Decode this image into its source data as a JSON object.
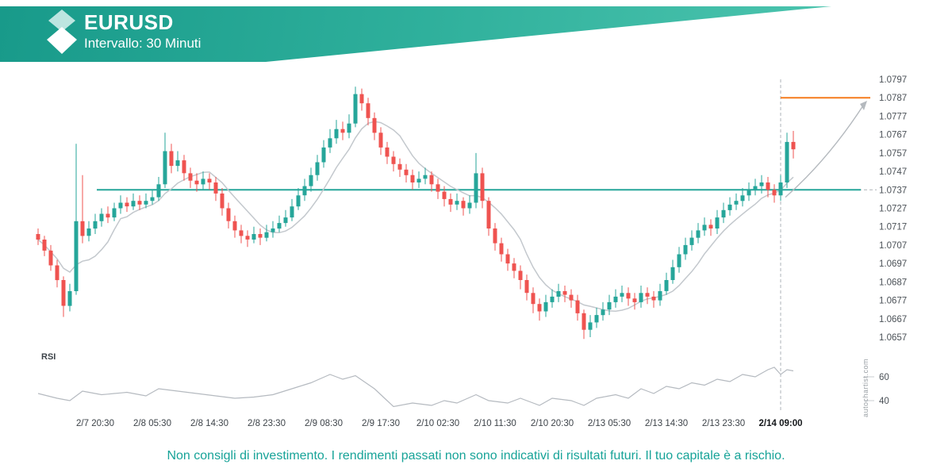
{
  "header": {
    "symbol": "EURUSD",
    "interval_label": "Intervallo: 30 Minuti"
  },
  "watermark": "autochartist.com",
  "footer": {
    "disclaimer": "Non consigli di investimento. I rendimenti passati non sono indicativi di risultati futuri. Il tuo capitale è a rischio."
  },
  "colors": {
    "banner_start": "#189a8a",
    "banner_end": "#54cab3",
    "bull": "#26a69a",
    "bear": "#ef5350",
    "support_line": "#26a69a",
    "target_line": "#f57b1d",
    "ma_line": "#c3c8cd",
    "rsi_line": "#b5bac0",
    "forecast_line": "#b4b9be",
    "dashed": "#adb3b8",
    "axis_text": "#4b5157",
    "footer_text": "#17a398"
  },
  "chart_data": {
    "type": "candlestick",
    "title": "EURUSD — Intervallo: 30 Minuti",
    "symbol": "EURUSD",
    "interval": "30 Minuti",
    "y_axis": {
      "max": 1.0797,
      "min": 1.0657,
      "step": 0.001,
      "labels": [
        "1.0797",
        "1.0787",
        "1.0777",
        "1.0767",
        "1.0757",
        "1.0747",
        "1.0737",
        "1.0727",
        "1.0717",
        "1.0707",
        "1.0697",
        "1.0687",
        "1.0677",
        "1.0667",
        "1.0657"
      ]
    },
    "x_axis": {
      "labels": [
        {
          "text": "2/7 20:30",
          "i": 9
        },
        {
          "text": "2/8 05:30",
          "i": 18
        },
        {
          "text": "2/8 14:30",
          "i": 27
        },
        {
          "text": "2/8 23:30",
          "i": 36
        },
        {
          "text": "2/9 08:30",
          "i": 45
        },
        {
          "text": "2/9 17:30",
          "i": 54
        },
        {
          "text": "2/10 02:30",
          "i": 63
        },
        {
          "text": "2/10 11:30",
          "i": 72
        },
        {
          "text": "2/10 20:30",
          "i": 81
        },
        {
          "text": "2/13 05:30",
          "i": 90
        },
        {
          "text": "2/13 14:30",
          "i": 99
        },
        {
          "text": "2/13 23:30",
          "i": 108
        },
        {
          "text": "2/14 09:00",
          "i": 117,
          "bold": true
        }
      ]
    },
    "levels": {
      "support": 1.0737,
      "target": 1.0787
    },
    "forecast": {
      "event_index": 117,
      "start_price": 1.0733,
      "target_price": 1.0787
    },
    "candles": [
      [
        1.0713,
        1.0716,
        1.0707,
        1.071
      ],
      [
        1.071,
        1.0712,
        1.0701,
        1.0704
      ],
      [
        1.0704,
        1.0707,
        1.0693,
        1.0696
      ],
      [
        1.0696,
        1.0699,
        1.0684,
        1.0688
      ],
      [
        1.0688,
        1.069,
        1.0668,
        1.0674
      ],
      [
        1.0674,
        1.0686,
        1.0671,
        1.0682
      ],
      [
        1.0682,
        1.0762,
        1.068,
        1.072
      ],
      [
        1.072,
        1.0745,
        1.0708,
        1.0712
      ],
      [
        1.0712,
        1.072,
        1.0709,
        1.0716
      ],
      [
        1.0716,
        1.0724,
        1.0713,
        1.072
      ],
      [
        1.072,
        1.0727,
        1.0717,
        1.0724
      ],
      [
        1.0724,
        1.0728,
        1.0719,
        1.0722
      ],
      [
        1.0722,
        1.073,
        1.072,
        1.0727
      ],
      [
        1.0727,
        1.0734,
        1.0724,
        1.073
      ],
      [
        1.073,
        1.0733,
        1.0725,
        1.0728
      ],
      [
        1.0728,
        1.0735,
        1.0726,
        1.0731
      ],
      [
        1.0731,
        1.0734,
        1.0726,
        1.0729
      ],
      [
        1.0729,
        1.0735,
        1.0727,
        1.0731
      ],
      [
        1.0731,
        1.0737,
        1.0729,
        1.0733
      ],
      [
        1.0733,
        1.0744,
        1.0731,
        1.074
      ],
      [
        1.074,
        1.0768,
        1.0738,
        1.0758
      ],
      [
        1.0758,
        1.0762,
        1.0746,
        1.075
      ],
      [
        1.075,
        1.0758,
        1.0747,
        1.0753
      ],
      [
        1.0753,
        1.0756,
        1.0742,
        1.0746
      ],
      [
        1.0746,
        1.0749,
        1.0738,
        1.0742
      ],
      [
        1.0742,
        1.0746,
        1.0736,
        1.074
      ],
      [
        1.074,
        1.0747,
        1.0737,
        1.0743
      ],
      [
        1.0743,
        1.0746,
        1.0737,
        1.0741
      ],
      [
        1.0741,
        1.0744,
        1.0731,
        1.0735
      ],
      [
        1.0735,
        1.0738,
        1.0723,
        1.0727
      ],
      [
        1.0727,
        1.073,
        1.0716,
        1.072
      ],
      [
        1.072,
        1.0723,
        1.0711,
        1.0715
      ],
      [
        1.0715,
        1.0718,
        1.0708,
        1.0712
      ],
      [
        1.0712,
        1.0715,
        1.0706,
        1.071
      ],
      [
        1.071,
        1.0717,
        1.0708,
        1.0713
      ],
      [
        1.0713,
        1.0716,
        1.0707,
        1.0711
      ],
      [
        1.0711,
        1.0718,
        1.0709,
        1.0714
      ],
      [
        1.0714,
        1.072,
        1.0711,
        1.0716
      ],
      [
        1.0716,
        1.0723,
        1.0714,
        1.0719
      ],
      [
        1.0719,
        1.0726,
        1.0717,
        1.0722
      ],
      [
        1.0722,
        1.0732,
        1.072,
        1.0728
      ],
      [
        1.0728,
        1.0738,
        1.0726,
        1.0734
      ],
      [
        1.0734,
        1.0743,
        1.0731,
        1.0739
      ],
      [
        1.0739,
        1.0749,
        1.0736,
        1.0745
      ],
      [
        1.0745,
        1.0756,
        1.0742,
        1.0752
      ],
      [
        1.0752,
        1.0764,
        1.0749,
        1.076
      ],
      [
        1.076,
        1.077,
        1.0757,
        1.0765
      ],
      [
        1.0765,
        1.0775,
        1.0762,
        1.077
      ],
      [
        1.077,
        1.0774,
        1.0764,
        1.0768
      ],
      [
        1.0768,
        1.0778,
        1.0765,
        1.0773
      ],
      [
        1.0773,
        1.0793,
        1.0771,
        1.0789
      ],
      [
        1.0789,
        1.0792,
        1.078,
        1.0784
      ],
      [
        1.0784,
        1.0787,
        1.0772,
        1.0776
      ],
      [
        1.0776,
        1.0779,
        1.0764,
        1.0768
      ],
      [
        1.0768,
        1.0771,
        1.0756,
        1.076
      ],
      [
        1.076,
        1.0763,
        1.0751,
        1.0755
      ],
      [
        1.0755,
        1.0758,
        1.0747,
        1.0751
      ],
      [
        1.0751,
        1.0754,
        1.0744,
        1.0748
      ],
      [
        1.0748,
        1.0751,
        1.0741,
        1.0745
      ],
      [
        1.0745,
        1.0748,
        1.0737,
        1.0741
      ],
      [
        1.0741,
        1.0747,
        1.0738,
        1.0743
      ],
      [
        1.0743,
        1.0749,
        1.074,
        1.0745
      ],
      [
        1.0745,
        1.0747,
        1.0736,
        1.074
      ],
      [
        1.074,
        1.0743,
        1.0732,
        1.0736
      ],
      [
        1.0736,
        1.0739,
        1.0728,
        1.0732
      ],
      [
        1.0732,
        1.0735,
        1.0725,
        1.0729
      ],
      [
        1.0729,
        1.0735,
        1.0726,
        1.0731
      ],
      [
        1.0731,
        1.0733,
        1.0723,
        1.0727
      ],
      [
        1.0727,
        1.0734,
        1.0724,
        1.073
      ],
      [
        1.073,
        1.0757,
        1.0727,
        1.0746
      ],
      [
        1.0746,
        1.0749,
        1.0727,
        1.0731
      ],
      [
        1.0731,
        1.0733,
        1.0712,
        1.0716
      ],
      [
        1.0716,
        1.0719,
        1.0704,
        1.0708
      ],
      [
        1.0708,
        1.0711,
        1.0698,
        1.0702
      ],
      [
        1.0702,
        1.0705,
        1.0693,
        1.0697
      ],
      [
        1.0697,
        1.07,
        1.0689,
        1.0693
      ],
      [
        1.0693,
        1.0696,
        1.0683,
        1.0688
      ],
      [
        1.0688,
        1.0691,
        1.0677,
        1.0681
      ],
      [
        1.0681,
        1.0684,
        1.067,
        1.0675
      ],
      [
        1.0675,
        1.0678,
        1.0666,
        1.0671
      ],
      [
        1.0671,
        1.068,
        1.0668,
        1.0676
      ],
      [
        1.0676,
        1.0683,
        1.0673,
        1.0679
      ],
      [
        1.0679,
        1.0686,
        1.0676,
        1.0682
      ],
      [
        1.0682,
        1.0685,
        1.0676,
        1.068
      ],
      [
        1.068,
        1.0683,
        1.0673,
        1.0677
      ],
      [
        1.0677,
        1.068,
        1.0666,
        1.067
      ],
      [
        1.067,
        1.0672,
        1.0656,
        1.0661
      ],
      [
        1.0661,
        1.0669,
        1.0657,
        1.0665
      ],
      [
        1.0665,
        1.0673,
        1.0662,
        1.0669
      ],
      [
        1.0669,
        1.0676,
        1.0666,
        1.0672
      ],
      [
        1.0672,
        1.068,
        1.0669,
        1.0676
      ],
      [
        1.0676,
        1.0683,
        1.0673,
        1.0679
      ],
      [
        1.0679,
        1.0685,
        1.0676,
        1.0681
      ],
      [
        1.0681,
        1.0684,
        1.0674,
        1.0678
      ],
      [
        1.0678,
        1.0681,
        1.0672,
        1.0676
      ],
      [
        1.0676,
        1.0685,
        1.0673,
        1.0681
      ],
      [
        1.0681,
        1.0684,
        1.0675,
        1.0679
      ],
      [
        1.0679,
        1.0682,
        1.0673,
        1.0677
      ],
      [
        1.0677,
        1.0686,
        1.0674,
        1.0682
      ],
      [
        1.0682,
        1.0692,
        1.068,
        1.0688
      ],
      [
        1.0688,
        1.0699,
        1.0686,
        1.0695
      ],
      [
        1.0695,
        1.0706,
        1.0692,
        1.0702
      ],
      [
        1.0702,
        1.0711,
        1.0699,
        1.0707
      ],
      [
        1.0707,
        1.0715,
        1.0704,
        1.0711
      ],
      [
        1.0711,
        1.0719,
        1.0708,
        1.0715
      ],
      [
        1.0715,
        1.0722,
        1.0712,
        1.0718
      ],
      [
        1.0718,
        1.0721,
        1.0712,
        1.0716
      ],
      [
        1.0716,
        1.0726,
        1.0713,
        1.0722
      ],
      [
        1.0722,
        1.073,
        1.0719,
        1.0726
      ],
      [
        1.0726,
        1.0733,
        1.0723,
        1.0729
      ],
      [
        1.0729,
        1.0735,
        1.0726,
        1.0731
      ],
      [
        1.0731,
        1.0738,
        1.0728,
        1.0734
      ],
      [
        1.0734,
        1.0741,
        1.0731,
        1.0737
      ],
      [
        1.0737,
        1.0743,
        1.0734,
        1.0739
      ],
      [
        1.0739,
        1.0745,
        1.0735,
        1.0741
      ],
      [
        1.0741,
        1.0744,
        1.0733,
        1.0737
      ],
      [
        1.0737,
        1.074,
        1.073,
        1.0734
      ],
      [
        1.0734,
        1.0745,
        1.0731,
        1.0741
      ],
      [
        1.0741,
        1.0768,
        1.0738,
        1.0763
      ],
      [
        1.0763,
        1.0769,
        1.0754,
        1.0759
      ]
    ],
    "rsi": {
      "label": "RSI",
      "ticks": [
        60,
        40
      ],
      "points": [
        [
          0,
          46
        ],
        [
          3,
          42
        ],
        [
          5,
          40
        ],
        [
          7,
          48
        ],
        [
          10,
          45
        ],
        [
          14,
          47
        ],
        [
          17,
          44
        ],
        [
          19,
          50
        ],
        [
          22,
          48
        ],
        [
          25,
          46
        ],
        [
          28,
          44
        ],
        [
          31,
          42
        ],
        [
          34,
          43
        ],
        [
          37,
          45
        ],
        [
          40,
          50
        ],
        [
          43,
          55
        ],
        [
          46,
          62
        ],
        [
          48,
          58
        ],
        [
          50,
          61
        ],
        [
          53,
          50
        ],
        [
          56,
          35
        ],
        [
          59,
          38
        ],
        [
          62,
          36
        ],
        [
          64,
          40
        ],
        [
          66,
          38
        ],
        [
          69,
          45
        ],
        [
          71,
          40
        ],
        [
          74,
          38
        ],
        [
          76,
          42
        ],
        [
          79,
          36
        ],
        [
          81,
          42
        ],
        [
          84,
          40
        ],
        [
          86,
          36
        ],
        [
          88,
          42
        ],
        [
          91,
          45
        ],
        [
          93,
          42
        ],
        [
          95,
          50
        ],
        [
          97,
          46
        ],
        [
          99,
          52
        ],
        [
          101,
          50
        ],
        [
          103,
          55
        ],
        [
          105,
          53
        ],
        [
          107,
          58
        ],
        [
          109,
          56
        ],
        [
          111,
          62
        ],
        [
          113,
          60
        ],
        [
          115,
          66
        ],
        [
          116,
          68
        ],
        [
          117,
          62
        ],
        [
          118,
          66
        ],
        [
          119,
          65
        ]
      ]
    }
  }
}
